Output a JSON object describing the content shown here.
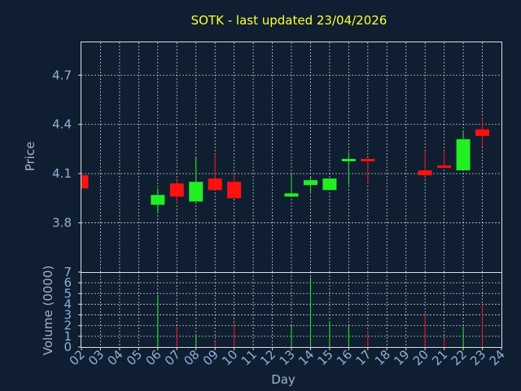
{
  "chart_data": {
    "type": "candlestick",
    "title": "SOTK - last updated 23/04/2026",
    "colors": {
      "up": "#22ee22",
      "down": "#ff1111",
      "background": "#0f1f31",
      "title": "#ffff33",
      "axis_text": "#8fb0d8"
    },
    "price_panel": {
      "ylabel": "Price",
      "ylim": [
        3.5,
        4.9
      ],
      "yticks": [
        "3.8",
        "4.1",
        "4.4",
        "4.7"
      ],
      "ytick_values": [
        3.8,
        4.1,
        4.4,
        4.7
      ]
    },
    "volume_panel": {
      "ylabel": "Volume (0000)",
      "ylim": [
        0,
        7
      ],
      "yticks": [
        "0",
        "1",
        "2",
        "3",
        "4",
        "5",
        "6",
        "7"
      ],
      "ytick_values": [
        0,
        1,
        2,
        3,
        4,
        5,
        6,
        7
      ]
    },
    "xlabel": "Day",
    "x_categories": [
      "02",
      "03",
      "04",
      "05",
      "06",
      "07",
      "08",
      "09",
      "10",
      "11",
      "12",
      "13",
      "14",
      "15",
      "16",
      "17",
      "18",
      "19",
      "20",
      "21",
      "22",
      "23",
      "24"
    ],
    "candles": [
      {
        "day": "02",
        "open": 4.09,
        "high": 4.09,
        "low": 4.01,
        "close": 4.01,
        "volume": 0.0
      },
      {
        "day": "06",
        "open": 3.91,
        "high": 4.01,
        "low": 3.86,
        "close": 3.97,
        "volume": 4.9
      },
      {
        "day": "07",
        "open": 4.04,
        "high": 4.07,
        "low": 3.92,
        "close": 3.96,
        "volume": 1.9
      },
      {
        "day": "08",
        "open": 3.93,
        "high": 4.2,
        "low": 3.93,
        "close": 4.05,
        "volume": 1.0
      },
      {
        "day": "09",
        "open": 4.07,
        "high": 4.22,
        "low": 4.0,
        "close": 4.0,
        "volume": 0.5
      },
      {
        "day": "10",
        "open": 4.05,
        "high": 4.1,
        "low": 3.95,
        "close": 3.95,
        "volume": 2.3
      },
      {
        "day": "13",
        "open": 3.96,
        "high": 4.1,
        "low": 3.96,
        "close": 3.98,
        "volume": 2.0
      },
      {
        "day": "14",
        "open": 4.03,
        "high": 4.08,
        "low": 3.98,
        "close": 4.06,
        "volume": 6.5
      },
      {
        "day": "15",
        "open": 4.0,
        "high": 4.07,
        "low": 4.0,
        "close": 4.07,
        "volume": 2.4
      },
      {
        "day": "16",
        "open": 4.18,
        "high": 4.23,
        "low": 4.03,
        "close": 4.19,
        "volume": 2.0
      },
      {
        "day": "17",
        "open": 4.19,
        "high": 4.19,
        "low": 4.04,
        "close": 4.18,
        "volume": 1.5
      },
      {
        "day": "20",
        "open": 4.12,
        "high": 4.24,
        "low": 4.07,
        "close": 4.09,
        "volume": 3.3
      },
      {
        "day": "21",
        "open": 4.15,
        "high": 4.24,
        "low": 4.14,
        "close": 4.14,
        "volume": 0.8
      },
      {
        "day": "22",
        "open": 4.12,
        "high": 4.36,
        "low": 4.12,
        "close": 4.31,
        "volume": 1.9
      },
      {
        "day": "23",
        "open": 4.37,
        "high": 4.44,
        "low": 4.26,
        "close": 4.33,
        "volume": 4.0
      }
    ]
  }
}
